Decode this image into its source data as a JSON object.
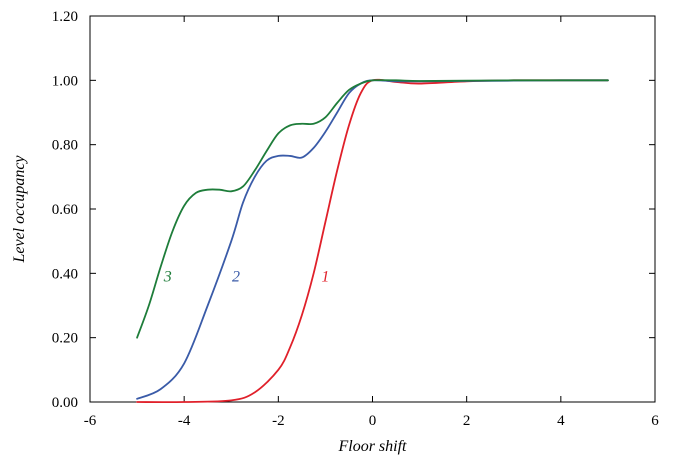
{
  "chart_data": {
    "type": "line",
    "xlabel": "Floor shift",
    "ylabel": "Level occupancy",
    "xlim": [
      -6,
      6
    ],
    "ylim": [
      0,
      1.2
    ],
    "x_ticks": [
      -6,
      -4,
      -2,
      0,
      2,
      4,
      6
    ],
    "x_tick_labels": [
      "-6",
      "-4",
      "-2",
      "0",
      "2",
      "4",
      "6"
    ],
    "y_ticks": [
      0,
      0.2,
      0.4,
      0.6,
      0.8,
      1.0,
      1.2
    ],
    "y_tick_labels": [
      "0.00",
      "0.20",
      "0.40",
      "0.60",
      "0.80",
      "1.00",
      "1.20"
    ],
    "grid": false,
    "legend": "none",
    "series": [
      {
        "label": "1",
        "color": "#e0202a",
        "label_pos": [
          -1.0,
          0.39
        ],
        "x": [
          -5.0,
          -4.0,
          -3.0,
          -2.5,
          -2.0,
          -1.75,
          -1.5,
          -1.25,
          -1.0,
          -0.75,
          -0.5,
          -0.25,
          0.0,
          0.5,
          1.0,
          2.0,
          3.0,
          4.0,
          5.0
        ],
        "y": [
          0.0,
          0.0,
          0.005,
          0.03,
          0.1,
          0.17,
          0.27,
          0.4,
          0.56,
          0.72,
          0.86,
          0.96,
          1.0,
          0.995,
          0.99,
          0.997,
          1.0,
          1.0,
          1.0
        ]
      },
      {
        "label": "2",
        "color": "#3a5ba8",
        "label_pos": [
          -2.9,
          0.39
        ],
        "x": [
          -5.0,
          -4.5,
          -4.0,
          -3.5,
          -3.0,
          -2.75,
          -2.5,
          -2.25,
          -2.0,
          -1.75,
          -1.5,
          -1.25,
          -1.0,
          -0.75,
          -0.5,
          -0.25,
          0.0,
          0.5,
          1.0,
          2.0,
          3.0,
          4.0,
          5.0
        ],
        "y": [
          0.01,
          0.04,
          0.12,
          0.3,
          0.5,
          0.62,
          0.7,
          0.75,
          0.765,
          0.765,
          0.76,
          0.79,
          0.84,
          0.9,
          0.96,
          0.99,
          1.0,
          0.997,
          0.997,
          0.998,
          0.999,
          1.0,
          1.0
        ]
      },
      {
        "label": "3",
        "color": "#1e7d3a",
        "label_pos": [
          -4.35,
          0.39
        ],
        "x": [
          -5.0,
          -4.75,
          -4.5,
          -4.25,
          -4.0,
          -3.75,
          -3.5,
          -3.25,
          -3.0,
          -2.75,
          -2.5,
          -2.25,
          -2.0,
          -1.75,
          -1.5,
          -1.25,
          -1.0,
          -0.75,
          -0.5,
          -0.25,
          0.0,
          0.5,
          1.0,
          2.0,
          3.0,
          4.0,
          5.0
        ],
        "y": [
          0.2,
          0.3,
          0.42,
          0.53,
          0.61,
          0.65,
          0.66,
          0.66,
          0.655,
          0.67,
          0.72,
          0.78,
          0.835,
          0.86,
          0.865,
          0.865,
          0.885,
          0.93,
          0.97,
          0.99,
          1.0,
          1.0,
          0.998,
          0.999,
          1.0,
          1.0,
          1.0
        ]
      }
    ]
  }
}
